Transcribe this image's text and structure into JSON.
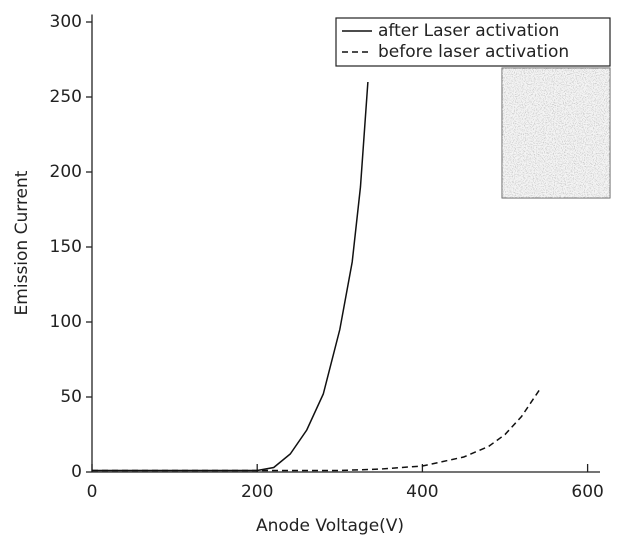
{
  "chart_data": {
    "type": "line",
    "x_label": "Anode Voltage(V)",
    "y_label": "Emission Current",
    "xlim": [
      0,
      615
    ],
    "ylim": [
      0,
      305
    ],
    "xticks": [
      0,
      200,
      400,
      600
    ],
    "yticks": [
      0,
      50,
      100,
      150,
      200,
      250,
      300
    ],
    "legend": "upper right",
    "series": [
      {
        "name": "after Laser activation",
        "color": "#111111",
        "dash": "solid",
        "x": [
          0,
          200,
          220,
          240,
          260,
          280,
          300,
          315,
          325,
          334
        ],
        "values": [
          1,
          1,
          3,
          12,
          28,
          52,
          95,
          140,
          190,
          260
        ]
      },
      {
        "name": "before laser activation",
        "color": "#111111",
        "dash": "dashed",
        "x": [
          0,
          300,
          350,
          400,
          450,
          480,
          500,
          520,
          542
        ],
        "values": [
          1,
          1,
          2,
          4,
          10,
          17,
          25,
          37,
          55
        ]
      }
    ]
  }
}
